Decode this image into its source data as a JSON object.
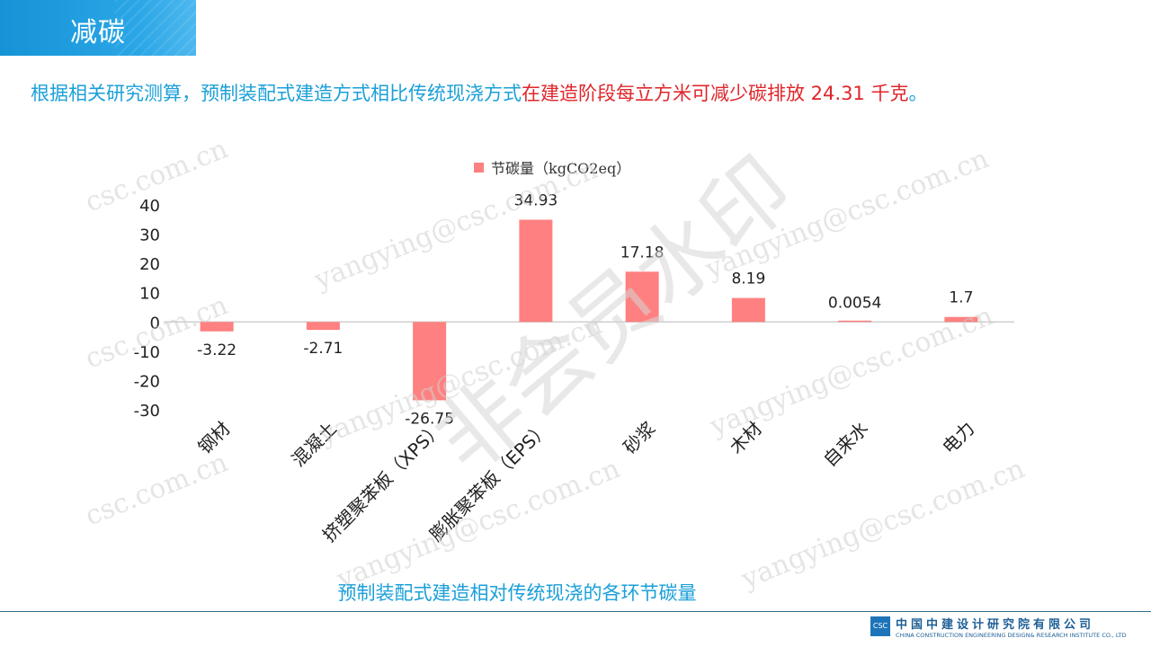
{
  "slide": {
    "title": "减碳",
    "subtitle_blue": "根据相关研究测算，预制装配式建造方式相比传统现浇方式",
    "subtitle_red": "在建造阶段每立方米可减少碳排放 24.31 千克",
    "subtitle_end": "。",
    "caption": "预制装配式建造相对传统现浇的各环节碳量"
  },
  "watermarks": {
    "email": "yangying@csc.com.cn",
    "domain": "csc.com.cn",
    "big": "非会员水印"
  },
  "footer": {
    "company_cn": "中国中建设计研究院有限公司",
    "company_en": "CHINA CONSTRUCTION ENGINEERING DESIGN& RESEARCH INSTITUTE CO., LTD",
    "logo_text": "CSC"
  },
  "colors": {
    "bar": "#ff8080",
    "accent_blue": "#1a9fd8",
    "accent_red": "#e0262b"
  },
  "chart_data": {
    "type": "bar",
    "title": "",
    "xlabel": "",
    "ylabel": "",
    "ylim": [
      -30,
      40
    ],
    "yticks": [
      "40",
      "30",
      "20",
      "10",
      "0",
      "-10",
      "-20",
      "-30"
    ],
    "categories": [
      "钢材",
      "混凝土",
      "挤塑聚苯板（XPS）",
      "膨胀聚苯板（EPS）",
      "砂浆",
      "木材",
      "自来水",
      "电力"
    ],
    "series": [
      {
        "name": "节碳量（kgCO2eq）",
        "values": [
          -3.22,
          -2.71,
          -26.75,
          34.93,
          17.18,
          8.19,
          0.0054,
          1.7
        ],
        "labels": [
          "-3.22",
          "-2.71",
          "-26.75",
          "34.93",
          "17.18",
          "8.19",
          "0.0054",
          "1.7"
        ]
      }
    ],
    "legend_position": "top-center",
    "grid": false
  }
}
